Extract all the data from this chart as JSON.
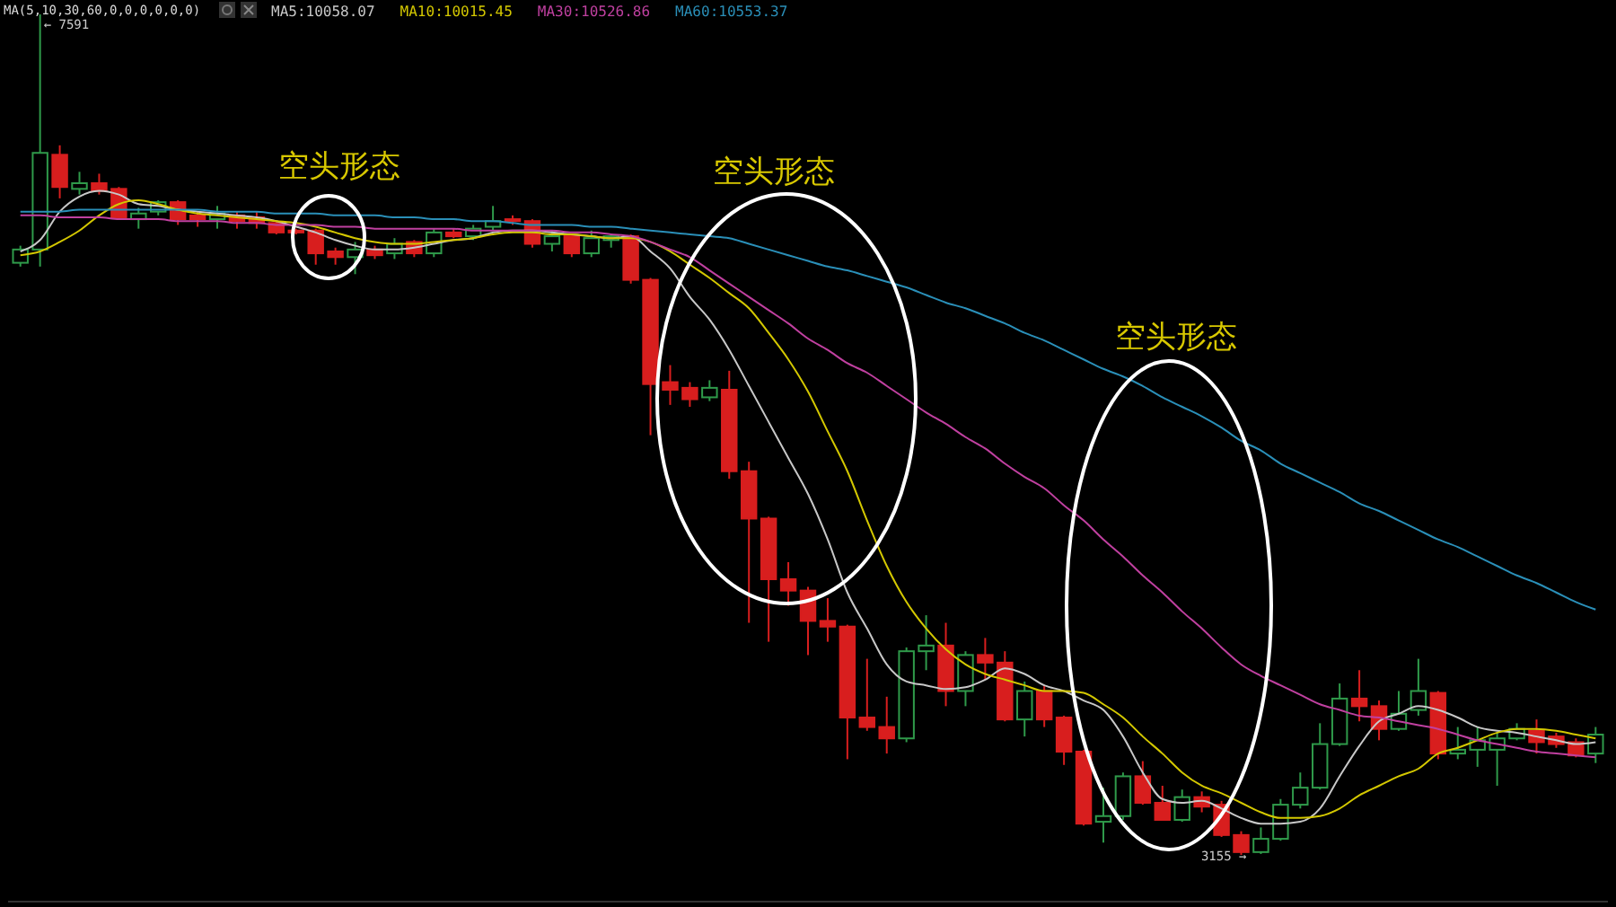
{
  "chart_data": {
    "type": "candlestick",
    "legend": "top left",
    "categories": [
      null,
      null,
      null,
      null,
      null,
      null,
      null,
      null,
      null,
      null,
      null,
      null,
      null,
      null,
      null,
      null,
      null,
      null,
      null,
      null,
      null,
      null,
      null,
      null,
      null,
      null,
      null,
      null,
      null,
      null,
      null,
      null,
      null,
      null,
      null,
      null,
      null,
      null,
      null,
      null,
      null,
      null,
      null,
      null,
      null,
      null,
      null,
      null,
      null,
      null,
      null,
      null,
      null,
      null,
      null,
      null,
      null,
      null,
      null,
      null,
      null,
      null,
      null,
      null,
      null,
      null,
      null,
      null,
      null,
      null,
      null,
      null,
      null,
      null,
      null,
      null,
      null,
      null,
      null,
      null,
      null
    ],
    "ohlc": [
      [
        6280,
        6370,
        6260,
        6350
      ],
      [
        6350,
        7591,
        6260,
        6860
      ],
      [
        6850,
        6900,
        6620,
        6680
      ],
      [
        6670,
        6760,
        6640,
        6700
      ],
      [
        6700,
        6750,
        6640,
        6660
      ],
      [
        6670,
        6680,
        6510,
        6520
      ],
      [
        6510,
        6570,
        6460,
        6540
      ],
      [
        6550,
        6610,
        6530,
        6600
      ],
      [
        6600,
        6610,
        6480,
        6510
      ],
      [
        6530,
        6550,
        6470,
        6510
      ],
      [
        6510,
        6580,
        6460,
        6540
      ],
      [
        6530,
        6550,
        6460,
        6500
      ],
      [
        6520,
        6550,
        6460,
        6490
      ],
      [
        6490,
        6500,
        6430,
        6440
      ],
      [
        6450,
        6460,
        6430,
        6440
      ],
      [
        6450,
        6460,
        6270,
        6330
      ],
      [
        6340,
        6360,
        6270,
        6310
      ],
      [
        6310,
        6390,
        6220,
        6350
      ],
      [
        6350,
        6370,
        6300,
        6320
      ],
      [
        6330,
        6410,
        6300,
        6380
      ],
      [
        6390,
        6400,
        6310,
        6330
      ],
      [
        6330,
        6460,
        6310,
        6440
      ],
      [
        6440,
        6460,
        6410,
        6420
      ],
      [
        6420,
        6480,
        6400,
        6460
      ],
      [
        6470,
        6580,
        6450,
        6500
      ],
      [
        6510,
        6530,
        6480,
        6500
      ],
      [
        6500,
        6510,
        6360,
        6380
      ],
      [
        6380,
        6450,
        6340,
        6420
      ],
      [
        6420,
        6430,
        6310,
        6330
      ],
      [
        6330,
        6450,
        6310,
        6410
      ],
      [
        6400,
        6430,
        6360,
        6420
      ],
      [
        6420,
        6430,
        6170,
        6190
      ],
      [
        6190,
        6200,
        5370,
        5640
      ],
      [
        5650,
        5740,
        5530,
        5610
      ],
      [
        5620,
        5650,
        5520,
        5560
      ],
      [
        5570,
        5660,
        5550,
        5620
      ],
      [
        5610,
        5710,
        5140,
        5180
      ],
      [
        5180,
        5230,
        4380,
        4930
      ],
      [
        4930,
        4940,
        4280,
        4610
      ],
      [
        4610,
        4700,
        4470,
        4550
      ],
      [
        4550,
        4570,
        4210,
        4390
      ],
      [
        4390,
        4510,
        4280,
        4360
      ],
      [
        4360,
        4370,
        3660,
        3880
      ],
      [
        3880,
        4190,
        3810,
        3830
      ],
      [
        3830,
        3990,
        3690,
        3770
      ],
      [
        3770,
        4250,
        3750,
        4230
      ],
      [
        4230,
        4420,
        4130,
        4260
      ],
      [
        4260,
        4380,
        3940,
        4020
      ],
      [
        4020,
        4230,
        3940,
        4210
      ],
      [
        4210,
        4300,
        4080,
        4170
      ],
      [
        4170,
        4230,
        3860,
        3870
      ],
      [
        3870,
        4070,
        3780,
        4020
      ],
      [
        4020,
        4050,
        3830,
        3870
      ],
      [
        3880,
        3890,
        3630,
        3700
      ],
      [
        3700,
        3710,
        3310,
        3320
      ],
      [
        3330,
        3510,
        3220,
        3360
      ],
      [
        3360,
        3590,
        3340,
        3570
      ],
      [
        3570,
        3650,
        3420,
        3430
      ],
      [
        3430,
        3520,
        3340,
        3340
      ],
      [
        3340,
        3500,
        3330,
        3460
      ],
      [
        3460,
        3490,
        3380,
        3410
      ],
      [
        3420,
        3440,
        3250,
        3260
      ],
      [
        3260,
        3280,
        3155,
        3170
      ],
      [
        3170,
        3300,
        3160,
        3240
      ],
      [
        3240,
        3450,
        3230,
        3420
      ],
      [
        3420,
        3590,
        3400,
        3510
      ],
      [
        3510,
        3850,
        3500,
        3740
      ],
      [
        3740,
        4060,
        3730,
        3980
      ],
      [
        3980,
        4130,
        3860,
        3940
      ],
      [
        3940,
        3970,
        3760,
        3820
      ],
      [
        3820,
        4020,
        3810,
        3900
      ],
      [
        3920,
        4190,
        3890,
        4020
      ],
      [
        4010,
        4020,
        3660,
        3690
      ],
      [
        3690,
        3830,
        3660,
        3710
      ],
      [
        3710,
        3830,
        3620,
        3760
      ],
      [
        3710,
        3800,
        3520,
        3770
      ],
      [
        3770,
        3850,
        3760,
        3820
      ],
      [
        3810,
        3870,
        3690,
        3750
      ],
      [
        3780,
        3800,
        3720,
        3740
      ],
      [
        3750,
        3770,
        3670,
        3680
      ],
      [
        3690,
        3830,
        3640,
        3790
      ]
    ],
    "series": [
      {
        "name": "MA5:10058.07",
        "type": "line",
        "color": "#c8c8c8",
        "values": [
          6340,
          6400,
          6550,
          6630,
          6660,
          6640,
          6590,
          6580,
          6560,
          6550,
          6540,
          6530,
          6520,
          6500,
          6470,
          6440,
          6400,
          6370,
          6350,
          6350,
          6360,
          6380,
          6400,
          6410,
          6440,
          6450,
          6450,
          6440,
          6430,
          6420,
          6410,
          6420,
          6340,
          6250,
          6100,
          5980,
          5820,
          5630,
          5440,
          5250,
          5060,
          4820,
          4540,
          4350,
          4160,
          4070,
          4050,
          4030,
          4040,
          4080,
          4140,
          4110,
          4050,
          4020,
          3970,
          3920,
          3780,
          3590,
          3450,
          3430,
          3440,
          3400,
          3350,
          3320,
          3320,
          3330,
          3400,
          3570,
          3730,
          3860,
          3900,
          3940,
          3920,
          3880,
          3830,
          3810,
          3800,
          3780,
          3760,
          3740,
          3750
        ]
      },
      {
        "name": "MA10:10015.45",
        "type": "line",
        "color": "#d4c800",
        "values": [
          6320,
          6340,
          6390,
          6450,
          6530,
          6590,
          6610,
          6590,
          6560,
          6540,
          6530,
          6520,
          6510,
          6500,
          6490,
          6470,
          6440,
          6410,
          6390,
          6380,
          6380,
          6390,
          6400,
          6410,
          6430,
          6440,
          6440,
          6430,
          6430,
          6420,
          6410,
          6410,
          6390,
          6340,
          6270,
          6200,
          6120,
          6040,
          5910,
          5770,
          5600,
          5390,
          5180,
          4920,
          4680,
          4490,
          4350,
          4240,
          4160,
          4110,
          4080,
          4050,
          4020,
          4020,
          4010,
          3950,
          3880,
          3780,
          3690,
          3590,
          3520,
          3480,
          3430,
          3380,
          3350,
          3350,
          3360,
          3400,
          3470,
          3520,
          3570,
          3610,
          3690,
          3720,
          3760,
          3800,
          3820,
          3820,
          3810,
          3790,
          3770
        ]
      },
      {
        "name": "MA30:10526.86",
        "type": "line",
        "color": "#c040a0",
        "values": [
          6530,
          6530,
          6520,
          6520,
          6520,
          6510,
          6510,
          6510,
          6500,
          6500,
          6500,
          6490,
          6490,
          6480,
          6480,
          6480,
          6470,
          6470,
          6460,
          6460,
          6460,
          6460,
          6460,
          6450,
          6450,
          6450,
          6450,
          6450,
          6440,
          6440,
          6430,
          6420,
          6390,
          6350,
          6310,
          6240,
          6170,
          6100,
          6030,
          5960,
          5880,
          5820,
          5750,
          5700,
          5630,
          5560,
          5490,
          5430,
          5360,
          5300,
          5220,
          5150,
          5090,
          5000,
          4920,
          4820,
          4730,
          4630,
          4540,
          4440,
          4350,
          4250,
          4160,
          4100,
          4050,
          4000,
          3950,
          3920,
          3890,
          3880,
          3860,
          3840,
          3820,
          3790,
          3760,
          3740,
          3720,
          3700,
          3690,
          3680,
          3670
        ]
      },
      {
        "name": "MA60:10553.37",
        "type": "line",
        "color": "#2a8fb8",
        "values": [
          6550,
          6550,
          6550,
          6560,
          6560,
          6560,
          6560,
          6560,
          6560,
          6560,
          6550,
          6550,
          6550,
          6540,
          6540,
          6540,
          6530,
          6530,
          6530,
          6520,
          6520,
          6510,
          6510,
          6500,
          6500,
          6490,
          6480,
          6480,
          6480,
          6470,
          6470,
          6460,
          6450,
          6440,
          6430,
          6420,
          6410,
          6380,
          6350,
          6320,
          6290,
          6260,
          6240,
          6210,
          6180,
          6150,
          6110,
          6070,
          6040,
          6000,
          5960,
          5910,
          5870,
          5820,
          5770,
          5720,
          5680,
          5630,
          5570,
          5520,
          5470,
          5410,
          5340,
          5290,
          5220,
          5170,
          5120,
          5070,
          5010,
          4970,
          4920,
          4870,
          4820,
          4780,
          4730,
          4680,
          4630,
          4590,
          4540,
          4490,
          4450
        ]
      }
    ],
    "annotations": [
      "MA(5,10,30,60,0,0,0,0,0,0)",
      "空头形态",
      "空头形态",
      "空头形态",
      "← 7591",
      "3155 →"
    ]
  }
}
